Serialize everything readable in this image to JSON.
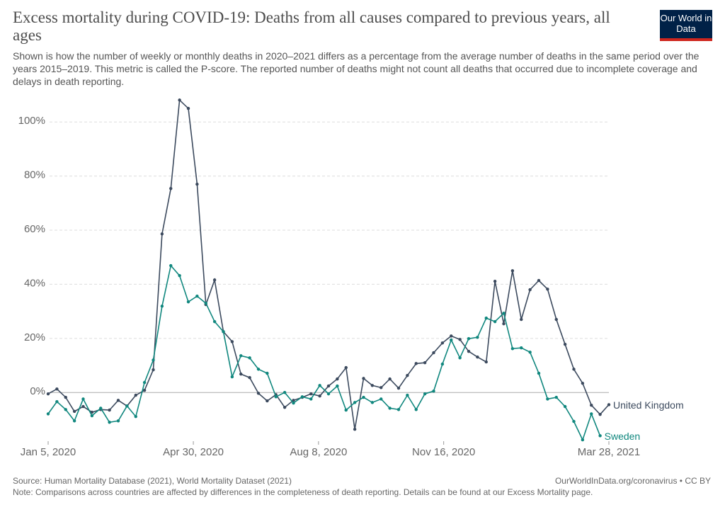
{
  "header": {
    "logo": "Our World in Data"
  },
  "chart_data": {
    "type": "line",
    "title": "Excess mortality during COVID-19: Deaths from all causes compared to previous years, all ages",
    "subtitle": "Shown is how the number of weekly or monthly deaths in 2020–2021 differs as a percentage from the average number of deaths in the same period over the years 2015–2019. This metric is called the P-score. The reported number of deaths might not count all deaths that occurred due to incomplete coverage and delays in death reporting.",
    "x": [
      "2020-01-05",
      "2020-01-12",
      "2020-01-19",
      "2020-01-26",
      "2020-02-02",
      "2020-02-09",
      "2020-02-16",
      "2020-02-23",
      "2020-03-01",
      "2020-03-08",
      "2020-03-15",
      "2020-03-22",
      "2020-03-29",
      "2020-04-05",
      "2020-04-12",
      "2020-04-19",
      "2020-04-26",
      "2020-05-03",
      "2020-05-10",
      "2020-05-17",
      "2020-05-24",
      "2020-05-31",
      "2020-06-07",
      "2020-06-14",
      "2020-06-21",
      "2020-06-28",
      "2020-07-05",
      "2020-07-12",
      "2020-07-19",
      "2020-07-26",
      "2020-08-02",
      "2020-08-09",
      "2020-08-16",
      "2020-08-23",
      "2020-08-30",
      "2020-09-06",
      "2020-09-13",
      "2020-09-20",
      "2020-09-27",
      "2020-10-04",
      "2020-10-11",
      "2020-10-18",
      "2020-10-25",
      "2020-11-01",
      "2020-11-08",
      "2020-11-15",
      "2020-11-22",
      "2020-11-29",
      "2020-12-06",
      "2020-12-13",
      "2020-12-20",
      "2020-12-27",
      "2021-01-03",
      "2021-01-10",
      "2021-01-17",
      "2021-01-24",
      "2021-01-31",
      "2021-02-07",
      "2021-02-14",
      "2021-02-21",
      "2021-02-28",
      "2021-03-07",
      "2021-03-14",
      "2021-03-21",
      "2021-03-28"
    ],
    "series": [
      {
        "name": "United Kingdom",
        "color": "#3c4a5e",
        "values": [
          -0.5,
          1.3,
          -1.8,
          -7,
          -5.2,
          -7.3,
          -6.3,
          -6.5,
          -2.9,
          -5,
          -1,
          0.8,
          8.4,
          58.6,
          75.4,
          108.1,
          105,
          77,
          32.5,
          41.6,
          22.5,
          18.8,
          6.8,
          5.5,
          -0.3,
          -3.1,
          -0.8,
          -5.5,
          -2.9,
          -1.8,
          -0.5,
          -1.3,
          2.4,
          5,
          9.2,
          -13.6,
          5.2,
          2.6,
          1.8,
          5,
          1.6,
          6.3,
          10.7,
          11,
          14.7,
          18.3,
          20.9,
          19.6,
          15.2,
          13.1,
          11.3,
          41.1,
          25.4,
          45,
          27,
          38,
          41.4,
          38.2,
          27,
          17.8,
          8.6,
          3.4,
          -4.7,
          -8.1,
          -4.5
        ]
      },
      {
        "name": "Sweden",
        "color": "#10877e",
        "values": [
          -7.9,
          -3.4,
          -6.3,
          -10.5,
          -2.4,
          -8.6,
          -5.8,
          -11,
          -10.5,
          -5,
          -8.9,
          3.7,
          12,
          31.9,
          46.9,
          43.2,
          33.5,
          35.6,
          33,
          26.2,
          22.5,
          5.8,
          13.6,
          12.8,
          8.6,
          7.1,
          -1.6,
          0,
          -3.9,
          -1.6,
          -2.4,
          2.6,
          -0.5,
          2.4,
          -6.5,
          -3.7,
          -1.8,
          -3.7,
          -2.4,
          -5.8,
          -6.3,
          -1,
          -6.3,
          -0.5,
          0.5,
          10.5,
          19.4,
          12.8,
          19.9,
          20.4,
          27.5,
          26.2,
          29.3,
          16.2,
          16.5,
          14.9,
          7.1,
          -2.4,
          -1.8,
          -5.2,
          -10.7,
          -17.5,
          -7.9,
          -16,
          null
        ]
      }
    ],
    "xlim": [
      "2020-01-05",
      "2021-03-28"
    ],
    "xticks": [
      {
        "value": "2020-01-05",
        "label": "Jan 5, 2020"
      },
      {
        "value": "2020-04-30",
        "label": "Apr 30, 2020"
      },
      {
        "value": "2020-08-08",
        "label": "Aug 8, 2020"
      },
      {
        "value": "2020-11-16",
        "label": "Nov 16, 2020"
      },
      {
        "value": "2021-03-28",
        "label": "Mar 28, 2021"
      }
    ],
    "ylim": [
      -18,
      110
    ],
    "yticks": [
      {
        "value": 0,
        "label": "0%"
      },
      {
        "value": 20,
        "label": "20%"
      },
      {
        "value": 40,
        "label": "40%"
      },
      {
        "value": 60,
        "label": "60%"
      },
      {
        "value": 80,
        "label": "80%"
      },
      {
        "value": 100,
        "label": "100%"
      }
    ],
    "grid": true
  },
  "footer": {
    "source": "Source: Human Mortality Database (2021), World Mortality Dataset (2021)",
    "credit": "OurWorldInData.org/coronavirus • CC BY",
    "note": "Note: Comparisons across countries are affected by differences in the completeness of death reporting. Details can be found at our Excess Mortality page."
  }
}
